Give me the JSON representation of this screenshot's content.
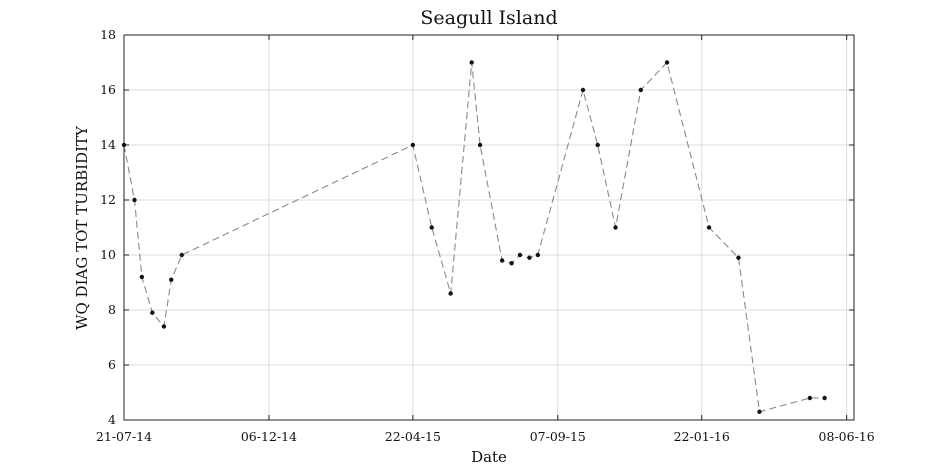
{
  "chart_data": {
    "type": "line",
    "title": "Seagull Island",
    "xlabel": "Date",
    "ylabel": "WQ DIAG TOT TURBIDITY",
    "x_tick_labels": [
      "21-07-14",
      "06-12-14",
      "22-04-15",
      "07-09-15",
      "22-01-16",
      "08-06-16"
    ],
    "x_tick_dates": [
      "2014-07-21",
      "2014-12-06",
      "2015-04-22",
      "2015-09-07",
      "2016-01-22",
      "2016-06-08"
    ],
    "xlim": [
      "2014-07-21",
      "2016-06-15"
    ],
    "ylim": [
      4,
      18
    ],
    "y_ticks": [
      4,
      6,
      8,
      10,
      12,
      14,
      16,
      18
    ],
    "grid": true,
    "series": [
      {
        "x": [
          "2014-07-21",
          "2014-07-31",
          "2014-08-07",
          "2014-08-17",
          "2014-08-28",
          "2014-09-04",
          "2014-09-14",
          "2015-04-22",
          "2015-05-10",
          "2015-05-28",
          "2015-06-17",
          "2015-06-25",
          "2015-07-16",
          "2015-07-25",
          "2015-08-02",
          "2015-08-11",
          "2015-08-19",
          "2015-10-01",
          "2015-10-15",
          "2015-11-01",
          "2015-11-25",
          "2015-12-20",
          "2016-01-29",
          "2016-02-26",
          "2016-03-17",
          "2016-05-04",
          "2016-05-18"
        ],
        "y": [
          14,
          12,
          9.2,
          7.9,
          7.4,
          9.1,
          10,
          14,
          11,
          8.6,
          17,
          14,
          9.8,
          9.7,
          10,
          9.9,
          10,
          16,
          14,
          11,
          16,
          17,
          11,
          9.9,
          4.3,
          4.8,
          4.8
        ]
      }
    ]
  }
}
